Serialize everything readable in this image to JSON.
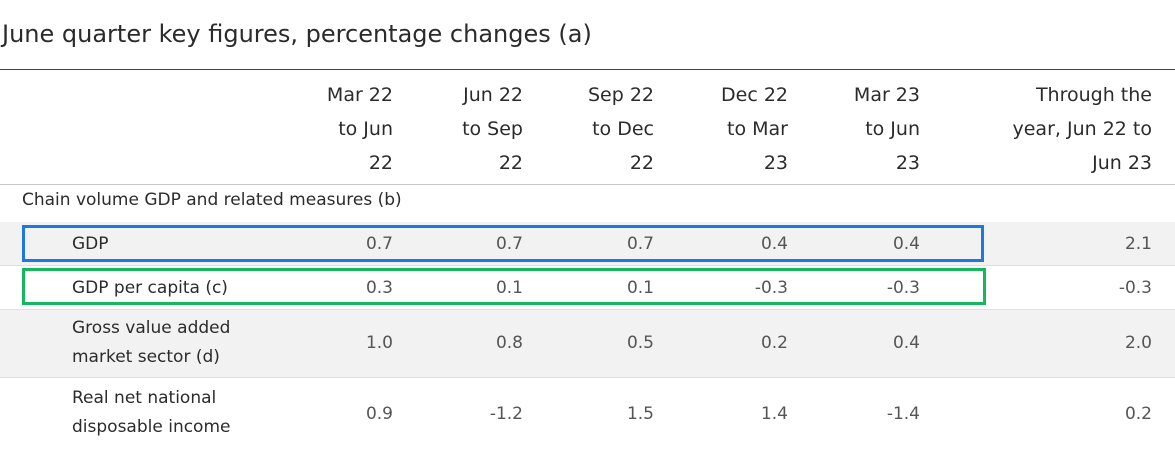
{
  "title": "June quarter key figures, percentage changes (a)",
  "columns": [
    {
      "lines": [
        "Mar 22",
        "to Jun",
        "22"
      ]
    },
    {
      "lines": [
        "Jun 22",
        "to Sep",
        "22"
      ]
    },
    {
      "lines": [
        "Sep 22",
        "to Dec",
        "22"
      ]
    },
    {
      "lines": [
        "Dec 22",
        "to Mar",
        "23"
      ]
    },
    {
      "lines": [
        "Mar 23",
        "to Jun",
        "23"
      ]
    },
    {
      "lines": [
        "Through the",
        "year, Jun 22 to",
        "Jun 23"
      ]
    }
  ],
  "section_label": "Chain volume GDP and related measures (b)",
  "rows": [
    {
      "label_lines": [
        "GDP"
      ],
      "values": [
        "0.7",
        "0.7",
        "0.7",
        "0.4",
        "0.4",
        "2.1"
      ]
    },
    {
      "label_lines": [
        "GDP per capita (c)"
      ],
      "values": [
        "0.3",
        "0.1",
        "0.1",
        "-0.3",
        "-0.3",
        "-0.3"
      ]
    },
    {
      "label_lines": [
        "Gross value added",
        "market sector (d)"
      ],
      "values": [
        "1.0",
        "0.8",
        "0.5",
        "0.2",
        "0.4",
        "2.0"
      ]
    },
    {
      "label_lines": [
        "Real net national",
        "disposable income"
      ],
      "values": [
        "0.9",
        "-1.2",
        "1.5",
        "1.4",
        "-1.4",
        "0.2"
      ]
    }
  ],
  "highlights": {
    "gdp_row_color": "#1f78e0",
    "gdp_per_capita_row_color": "#15b85f"
  }
}
